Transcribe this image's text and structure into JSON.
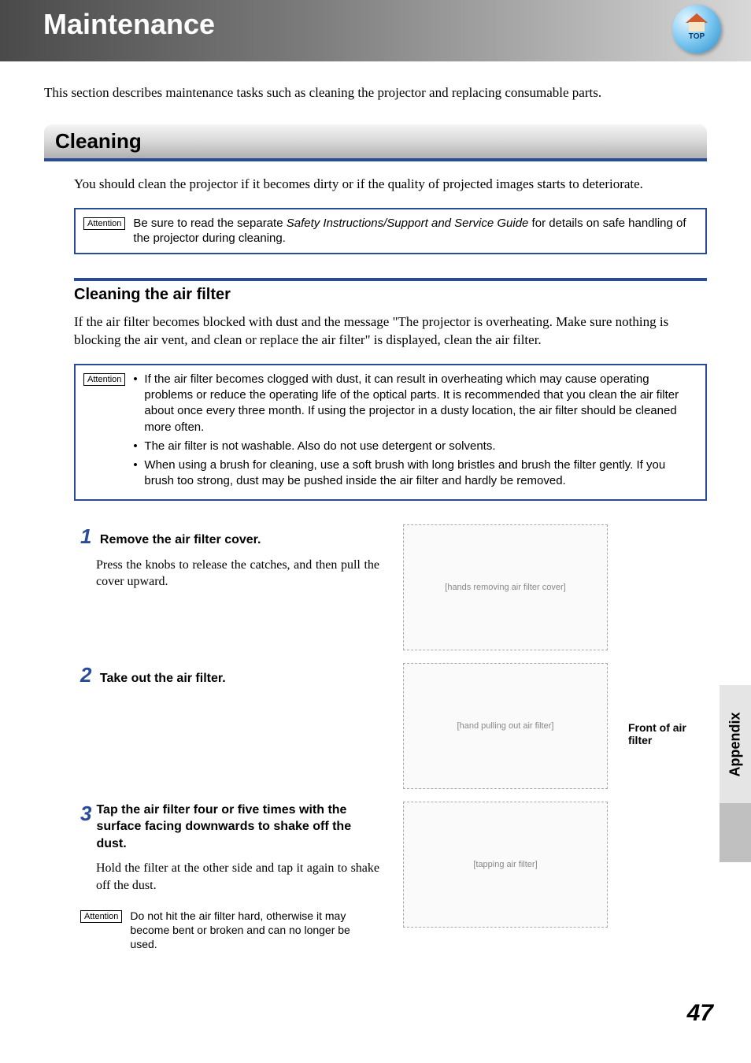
{
  "header": {
    "title": "Maintenance",
    "top_icon_label": "TOP"
  },
  "intro": "This section describes maintenance tasks such as cleaning the projector and replacing consumable parts.",
  "section": {
    "heading": "Cleaning",
    "intro": "You should clean the projector if it becomes dirty or if the quality of projected images starts to deteriorate.",
    "attention_label": "Attention",
    "attention1_prefix": "Be sure to read the separate ",
    "attention1_italic": "Safety Instructions/Support and Service Guide",
    "attention1_suffix": " for details on safe handling of the projector during cleaning."
  },
  "subsection": {
    "heading": "Cleaning the air filter",
    "intro": "If the air filter becomes blocked with dust and the message \"The projector is overheating. Make sure nothing is blocking the air vent, and clean or replace the air filter\" is displayed, clean the air filter.",
    "attention_items": [
      "If the air filter becomes clogged with dust, it can result in overheating which may cause operating problems or reduce the operating life of the optical parts. It is recommended that you clean the air filter about once every three month. If using the projector in a dusty location, the air filter should be cleaned more often.",
      "The air filter is not washable. Also do not use detergent or solvents.",
      "When using a brush for cleaning, use a soft brush with long bristles and brush the filter gently. If you brush too strong, dust may be pushed inside the air filter and hardly be removed."
    ]
  },
  "steps": [
    {
      "num": "1",
      "title": "Remove the air filter cover.",
      "desc": "Press the knobs to release the catches, and then pull the cover upward.",
      "illustration_alt": "[hands removing air filter cover]"
    },
    {
      "num": "2",
      "title": "Take out the air filter.",
      "desc": "",
      "illustration_alt": "[hand pulling out air filter]",
      "front_label": "Front of air filter"
    },
    {
      "num": "3",
      "title": "Tap the air filter four or five times with the surface facing downwards to shake off the dust.",
      "desc": "Hold the filter at the other side and tap it again to shake off the dust.",
      "illustration_alt": "[tapping air filter]",
      "attention": "Do not hit the air filter hard, otherwise it may become bent or broken and can no longer be used."
    }
  ],
  "side_tab": "Appendix",
  "page_number": "47",
  "colors": {
    "accent_blue": "#2a4a9a",
    "header_gradient_start": "#4a4a4a",
    "header_gradient_end": "#d8d8d8"
  }
}
